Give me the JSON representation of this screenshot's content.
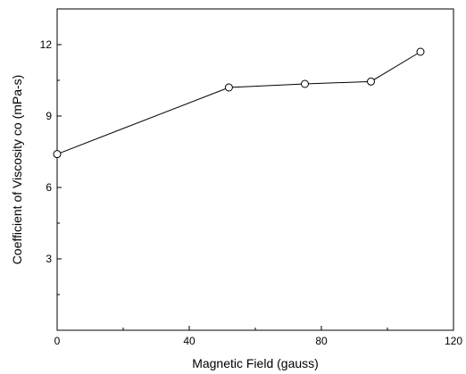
{
  "chart_data": {
    "type": "line",
    "title": "",
    "xlabel": "Magnetic Field (gauss)",
    "ylabel": "Coefficient of Viscosity co (mPa-s)",
    "xlim": [
      0,
      120
    ],
    "ylim": [
      0,
      13.5
    ],
    "x_ticks": [
      0,
      40,
      80,
      120
    ],
    "x_minor_ticks": [
      20,
      60,
      100
    ],
    "y_ticks": [
      3,
      6,
      9,
      12
    ],
    "y_minor_ticks": [
      1.5,
      4.5,
      7.5,
      10.5
    ],
    "x_tick_labels": [
      "0",
      "40",
      "80",
      "120"
    ],
    "y_tick_labels": [
      "3",
      "6",
      "9",
      "12"
    ],
    "grid": false,
    "marker": "open-circle",
    "series": [
      {
        "x": [
          0,
          52,
          75,
          95,
          110
        ],
        "y": [
          7.4,
          10.2,
          10.35,
          10.45,
          11.7
        ]
      }
    ]
  }
}
